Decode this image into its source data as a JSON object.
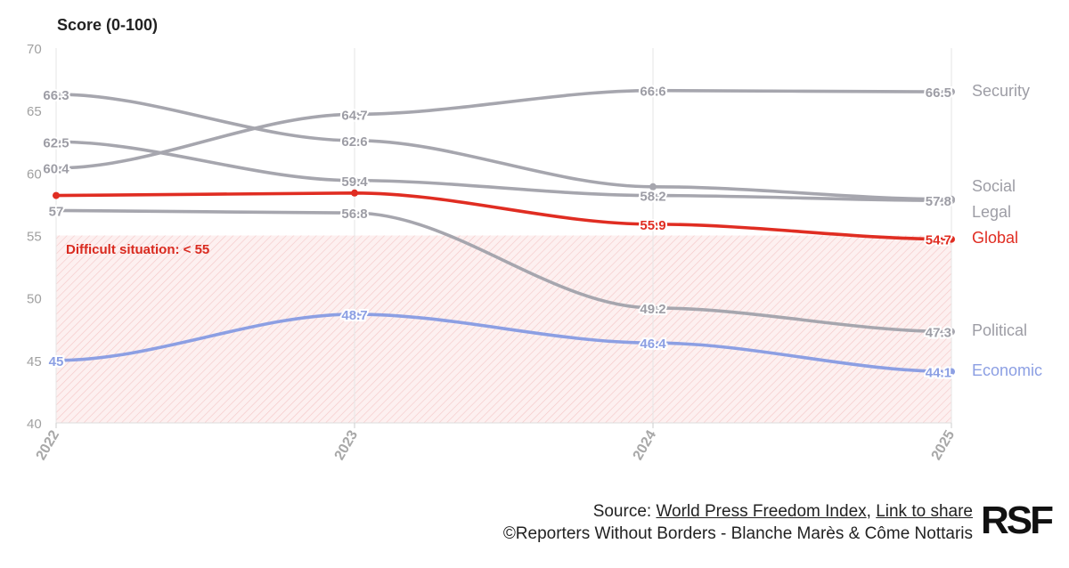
{
  "chart_data": {
    "type": "line",
    "ylabel": "Score (0-100)",
    "ylim": [
      40,
      70
    ],
    "yticks": [
      40,
      45,
      50,
      55,
      60,
      65,
      70
    ],
    "x": [
      "2022",
      "2023",
      "2024",
      "2025"
    ],
    "threshold": {
      "value": 55,
      "label": "Difficult situation: < 55"
    },
    "series": [
      {
        "name": "Security",
        "color": "#a6a6ae",
        "values": [
          60.4,
          64.7,
          66.6,
          66.5
        ],
        "labels": [
          "60.4",
          "64.7",
          "66.6",
          "66.5"
        ]
      },
      {
        "name": "Social",
        "color": "#a6a6ae",
        "values": [
          66.3,
          62.6,
          58.9,
          57.9
        ],
        "labels": [
          "66.3",
          "62.6",
          "",
          ""
        ]
      },
      {
        "name": "Legal",
        "color": "#a6a6ae",
        "values": [
          62.5,
          59.4,
          58.2,
          57.8
        ],
        "labels": [
          "62.5",
          "59.4",
          "58.2",
          "57.8"
        ]
      },
      {
        "name": "Global",
        "color": "#e02d22",
        "values": [
          58.2,
          58.4,
          55.9,
          54.7
        ],
        "labels": [
          "",
          "",
          "55.9",
          "54.7"
        ]
      },
      {
        "name": "Political",
        "color": "#a6a6ae",
        "values": [
          57,
          56.8,
          49.2,
          47.3
        ],
        "labels": [
          "57",
          "56.8",
          "49.2",
          "47.3"
        ]
      },
      {
        "name": "Economic",
        "color": "#8c9fe3",
        "values": [
          45,
          48.7,
          46.4,
          44.1
        ],
        "labels": [
          "45",
          "48.7",
          "46.4",
          "44.1"
        ]
      }
    ]
  },
  "footer": {
    "source_prefix": "Source: ",
    "source_link": "World Press Freedom Index",
    "separator": ", ",
    "share_link": "Link to share",
    "credit": "©Reporters Without Borders - Blanche Marès & Côme Nottaris",
    "logo_text": "RSF"
  }
}
